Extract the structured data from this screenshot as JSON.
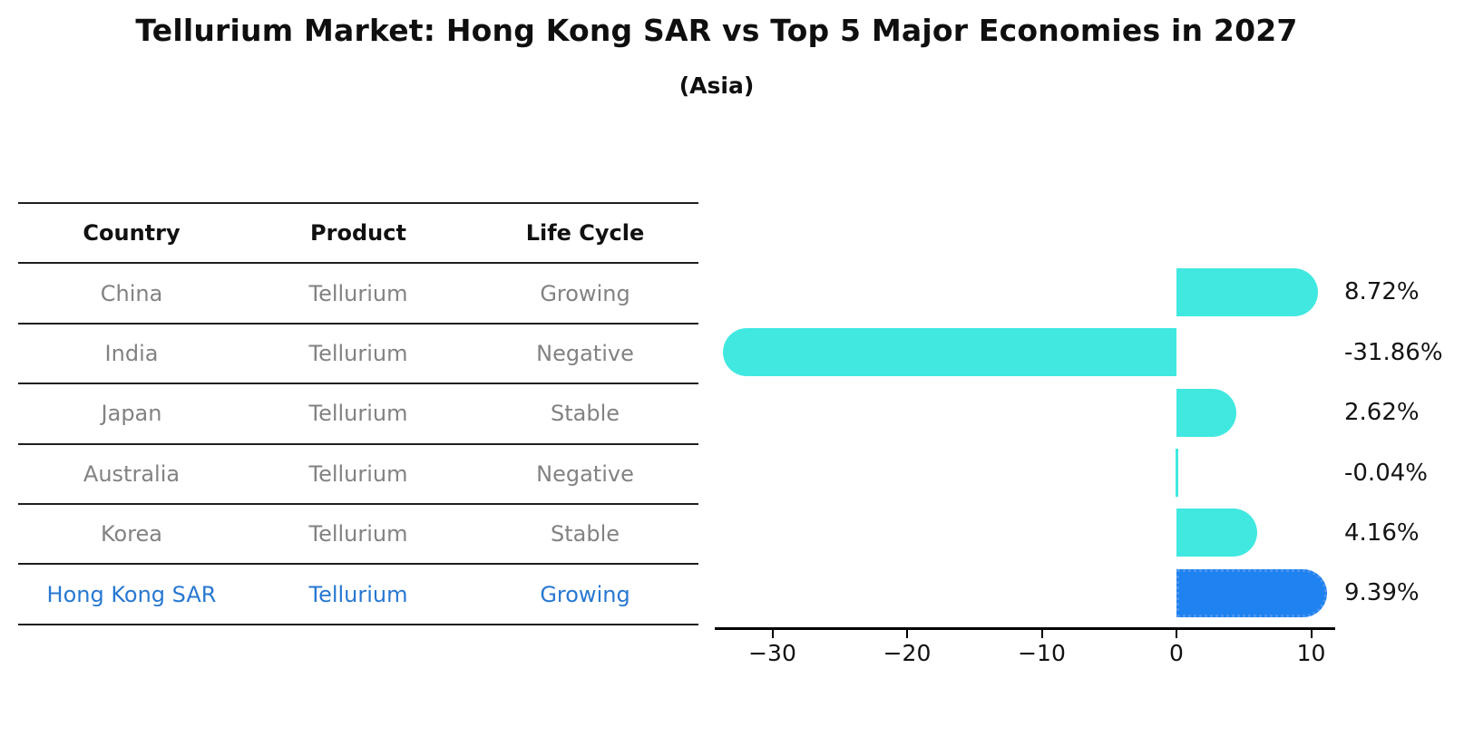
{
  "title": "Tellurium Market: Hong Kong SAR vs Top 5 Major Economies in 2027",
  "subtitle": "(Asia)",
  "colors": {
    "bar_default": "#40E8E0",
    "bar_highlight": "#1E82F0",
    "bar_highlight_border": "#4A94F0",
    "highlight_text": "#2878D2",
    "row_text": "#828282",
    "header_text": "#111111",
    "value_label_text": "#141414"
  },
  "table": {
    "headers": [
      "Country",
      "Product",
      "Life Cycle"
    ],
    "rows": [
      {
        "country": "China",
        "product": "Tellurium",
        "life_cycle": "Growing",
        "highlight": false
      },
      {
        "country": "India",
        "product": "Tellurium",
        "life_cycle": "Negative",
        "highlight": false
      },
      {
        "country": "Japan",
        "product": "Tellurium",
        "life_cycle": "Stable",
        "highlight": false
      },
      {
        "country": "Australia",
        "product": "Tellurium",
        "life_cycle": "Negative",
        "highlight": false
      },
      {
        "country": "Korea",
        "product": "Tellurium",
        "life_cycle": "Stable",
        "highlight": false
      },
      {
        "country": "Hong Kong SAR",
        "product": "Tellurium",
        "life_cycle": "Growing",
        "highlight": true
      }
    ]
  },
  "chart_data": {
    "type": "bar",
    "orientation": "horizontal",
    "title": "Tellurium Market: Hong Kong SAR vs Top 5 Major Economies in 2027 (Asia)",
    "xlabel": "",
    "ylabel": "",
    "categories": [
      "China",
      "India",
      "Japan",
      "Australia",
      "Korea",
      "Hong Kong SAR"
    ],
    "values": [
      8.72,
      -31.86,
      2.62,
      -0.04,
      4.16,
      9.39
    ],
    "labels": [
      "8.72%",
      "-31.86%",
      "2.62%",
      "-0.04%",
      "4.16%",
      "9.39%"
    ],
    "highlight_index": 5,
    "xlim": [
      -34.3,
      11.8
    ],
    "xticks": [
      -30,
      -20,
      -10,
      0,
      10
    ],
    "xtick_labels": [
      "−30",
      "−20",
      "−10",
      "0",
      "10"
    ],
    "grid": false,
    "legend": "none"
  }
}
